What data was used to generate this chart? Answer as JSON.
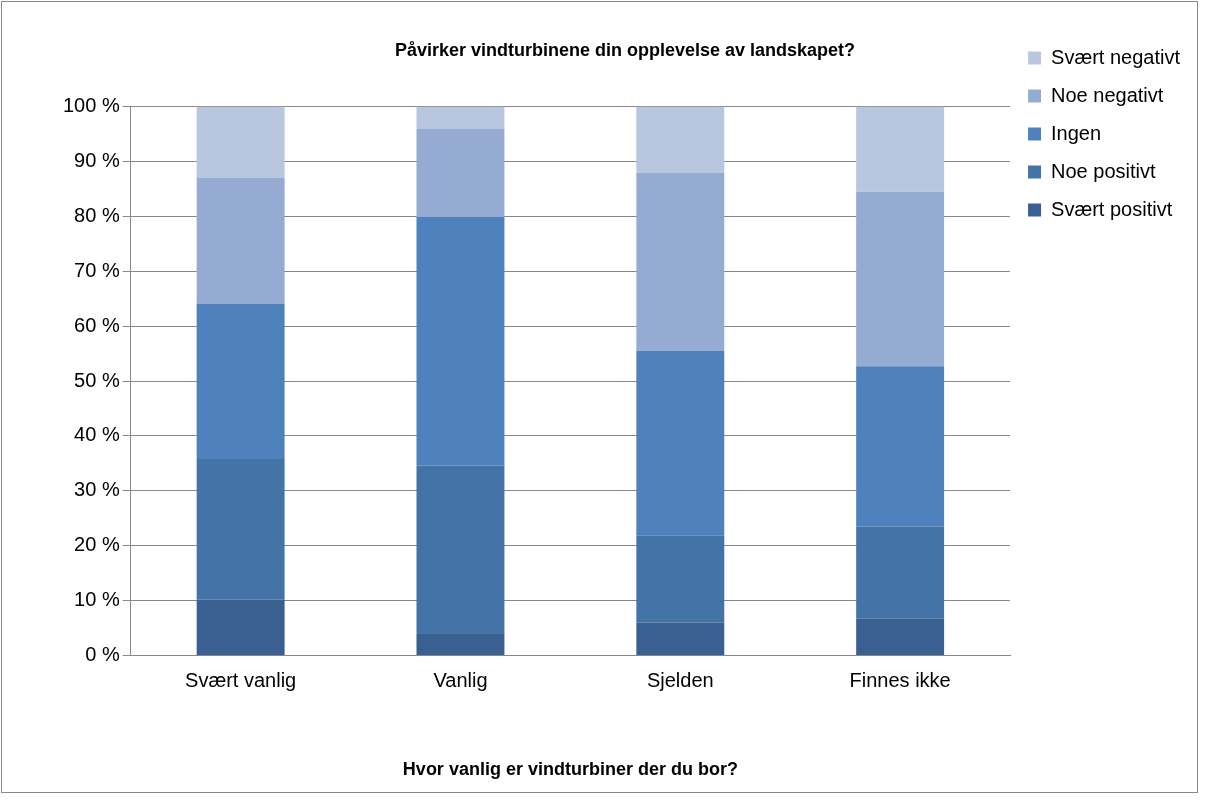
{
  "chart_data": {
    "type": "bar",
    "stacked": true,
    "title": "Påvirker vindturbinene din opplevelse av landskapet?",
    "xlabel": "Hvor vanlig er vindturbiner der du bor?",
    "categories": [
      "Svært vanlig",
      "Vanlig",
      "Sjelden",
      "Finnes ikke"
    ],
    "series": [
      {
        "name": "Svært positivt",
        "color": "#3a5f91",
        "values": [
          10.2,
          3.9,
          6.0,
          6.7
        ]
      },
      {
        "name": "Noe positivt",
        "color": "#4473a7",
        "values": [
          25.6,
          30.7,
          15.8,
          16.8
        ]
      },
      {
        "name": "Ingen",
        "color": "#4f81bd",
        "values": [
          28.3,
          45.3,
          33.7,
          29.2
        ]
      },
      {
        "name": "Noe negativt",
        "color": "#95abd2",
        "values": [
          22.9,
          16.0,
          32.4,
          31.8
        ]
      },
      {
        "name": "Svært negativt",
        "color": "#b9c6e0",
        "values": [
          13.0,
          4.1,
          12.1,
          15.5
        ]
      }
    ],
    "ylim": [
      0,
      100
    ],
    "yticks": [
      {
        "value": 0,
        "label": "0 %"
      },
      {
        "value": 10,
        "label": "10 %"
      },
      {
        "value": 20,
        "label": "20 %"
      },
      {
        "value": 30,
        "label": "30 %"
      },
      {
        "value": 40,
        "label": "40 %"
      },
      {
        "value": 50,
        "label": "50 %"
      },
      {
        "value": 60,
        "label": "60 %"
      },
      {
        "value": 70,
        "label": "70 %"
      },
      {
        "value": 80,
        "label": "80 %"
      },
      {
        "value": 90,
        "label": "90 %"
      },
      {
        "value": 100,
        "label": "100 %"
      }
    ],
    "grid": "y",
    "legend": "right"
  }
}
